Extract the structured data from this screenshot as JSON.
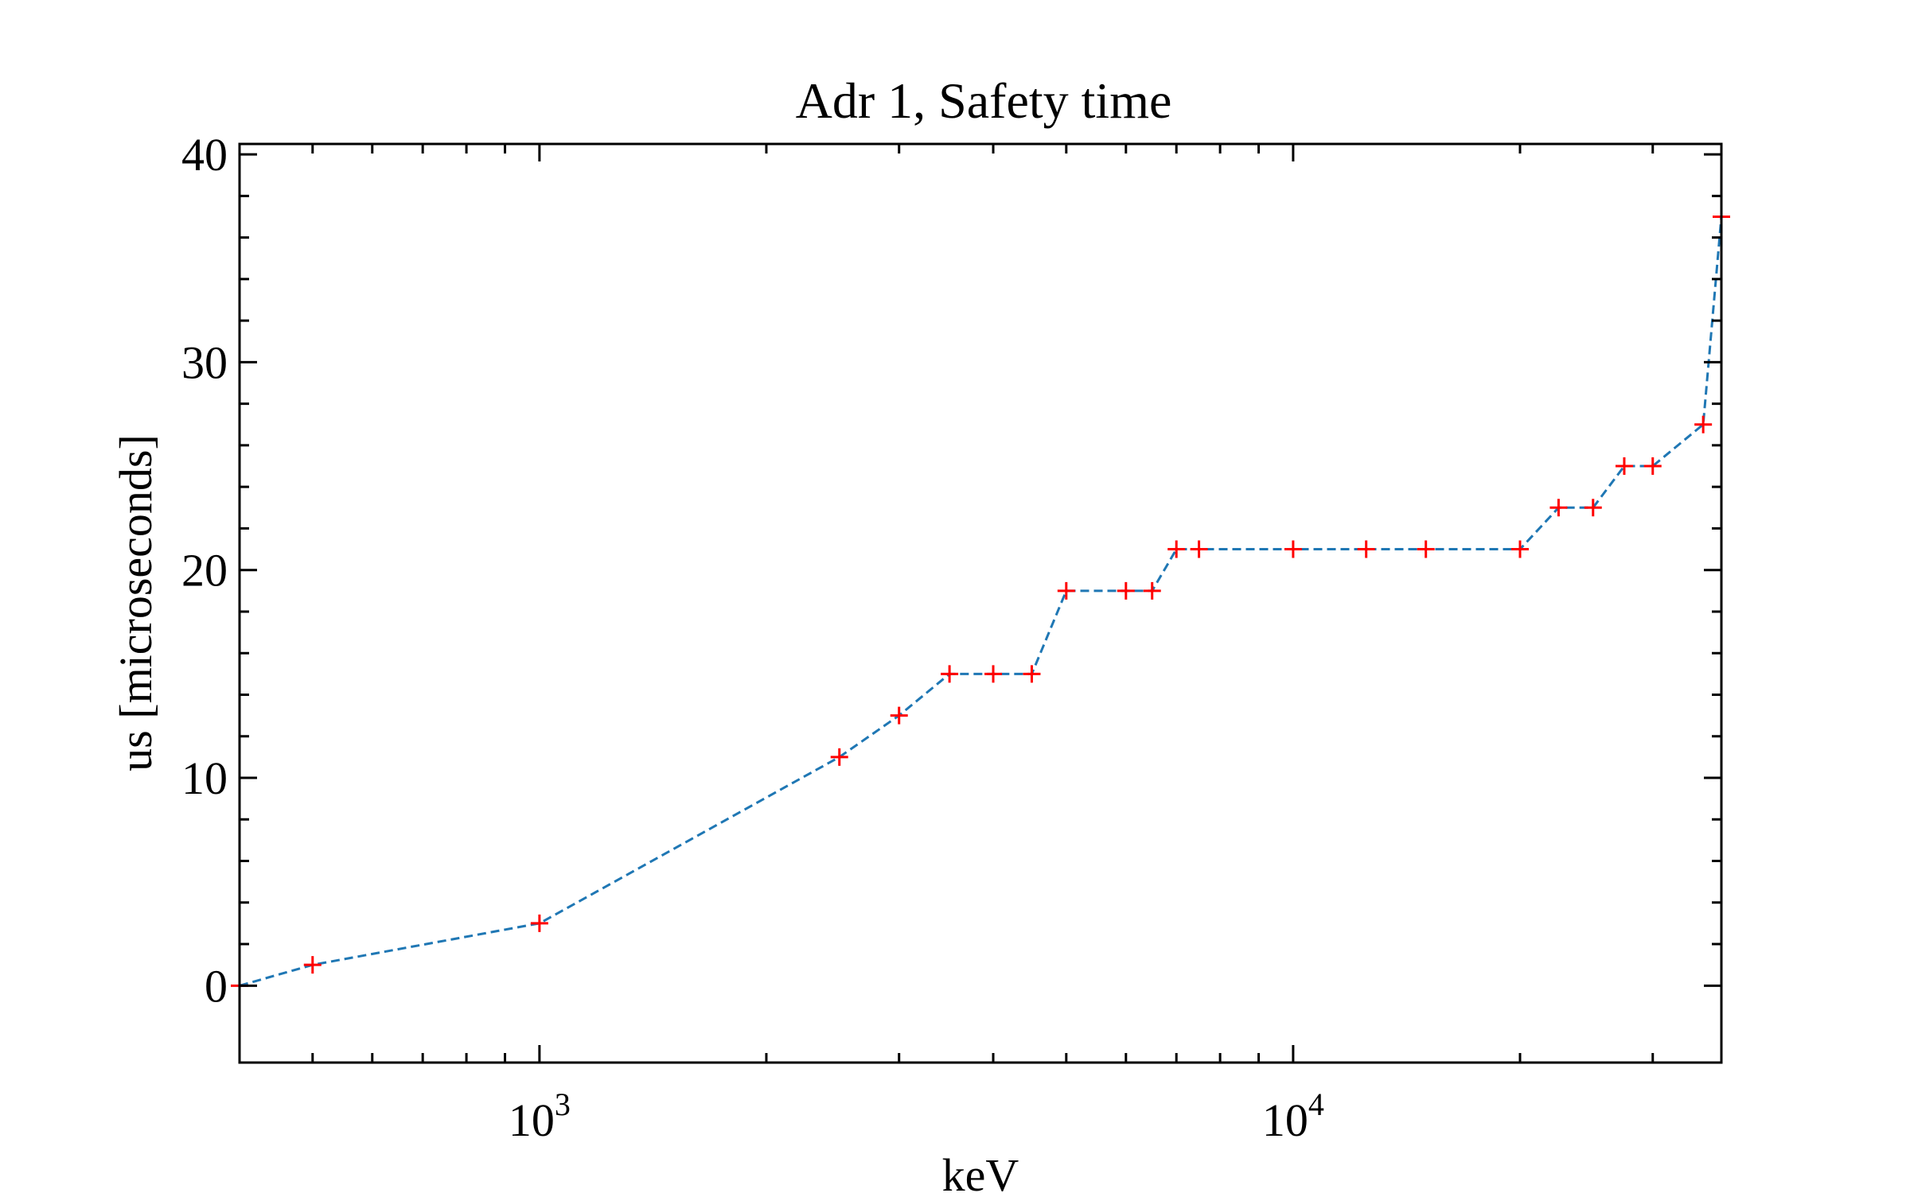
{
  "chart_data": {
    "type": "line",
    "title": "Adr 1, Safety time",
    "xlabel": "keV",
    "ylabel": "us [microseconds]",
    "xscale": "log",
    "xlim": [
      400,
      37000
    ],
    "ylim": [
      -3.7,
      40.5
    ],
    "yticks": [
      0,
      10,
      20,
      30,
      40
    ],
    "ytick_labels": [
      "0",
      "10",
      "20",
      "30",
      "40"
    ],
    "xticks_major": [
      1000,
      10000
    ],
    "xtick_labels": [
      {
        "base": "10",
        "exp": "3"
      },
      {
        "base": "10",
        "exp": "4"
      }
    ],
    "grid": false,
    "line_color": "#1f77b4",
    "line_style": "dashed",
    "marker": "+",
    "marker_color": "#ff0000",
    "series": [
      {
        "x": [
          400,
          500,
          1000,
          2500,
          3000,
          3500,
          4000,
          4500,
          5000,
          6000,
          6500,
          7000,
          7500,
          10000,
          12500,
          15000,
          20000,
          22500,
          25000,
          27500,
          30000,
          35000,
          37000
        ],
        "y": [
          0,
          1,
          3,
          11,
          13,
          15,
          15,
          15,
          19,
          19,
          19,
          21,
          21,
          21,
          21,
          21,
          21,
          23,
          23,
          25,
          25,
          27,
          37
        ]
      }
    ]
  }
}
